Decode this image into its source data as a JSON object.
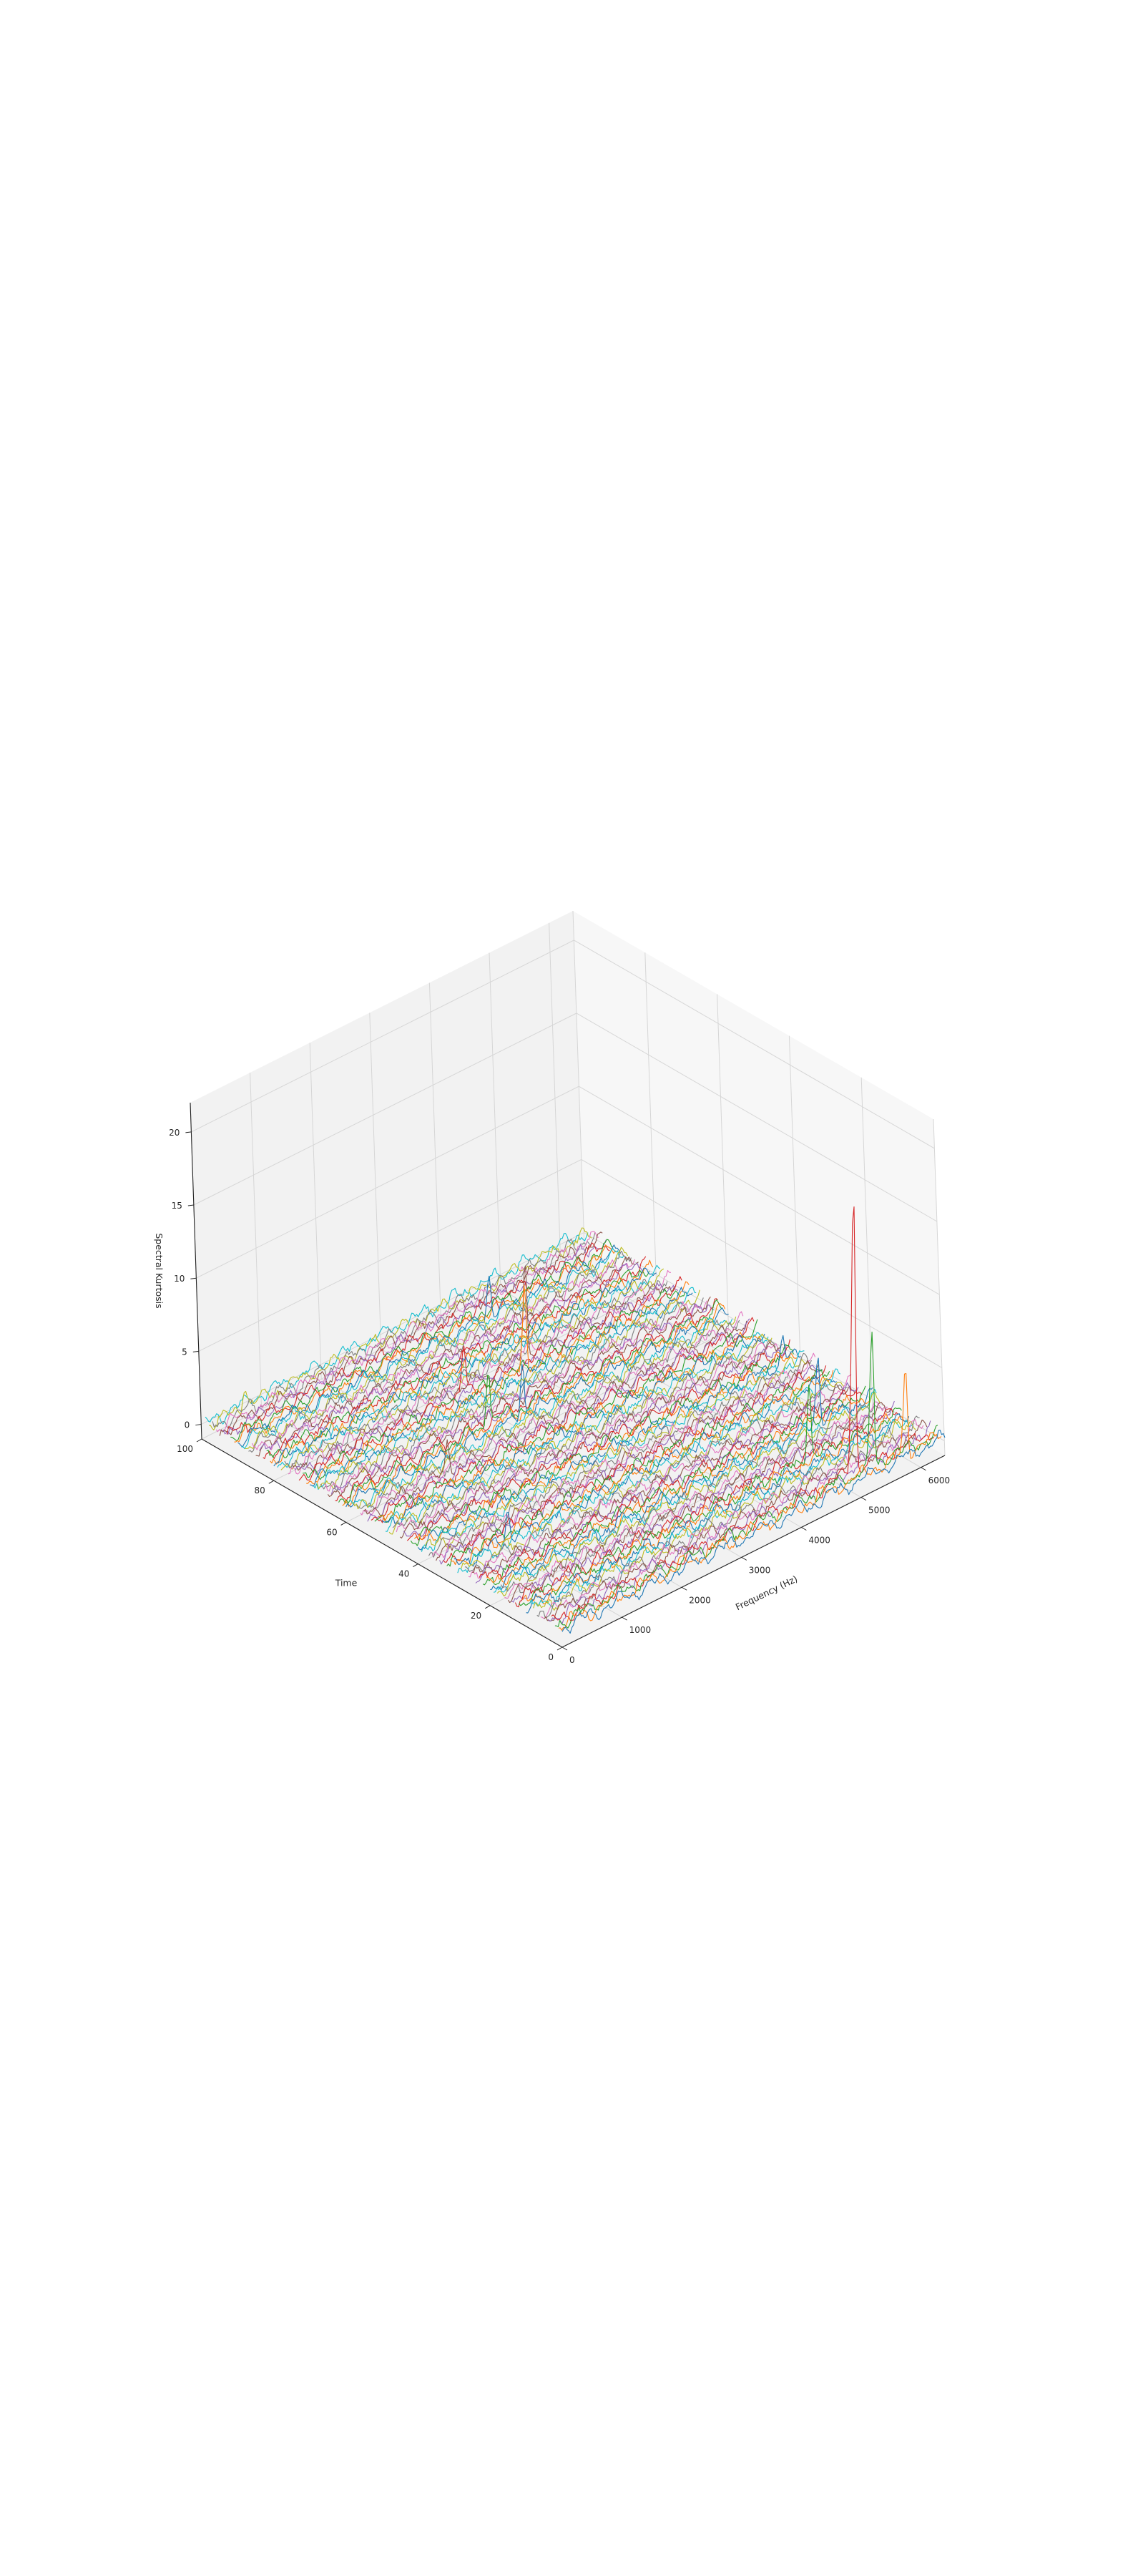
{
  "chart_data": {
    "type": "line",
    "projection": "3d",
    "title": "",
    "xlabel": "Frequency (Hz)",
    "ylabel": "Time",
    "zlabel": "Spectral Kurtosis",
    "xlim": [
      0,
      6400
    ],
    "ylim": [
      0,
      100
    ],
    "zlim": [
      -1,
      22
    ],
    "xticks": [
      0,
      1000,
      2000,
      3000,
      4000,
      5000,
      6000
    ],
    "yticks": [
      0,
      20,
      40,
      60,
      80,
      100
    ],
    "zticks": [
      0,
      5,
      10,
      15,
      20
    ],
    "xtick_labels": [
      "0",
      "1000",
      "2000",
      "3000",
      "4000",
      "5000",
      "6000"
    ],
    "ytick_labels": [
      "0",
      "20",
      "40",
      "60",
      "80",
      "100"
    ],
    "ztick_labels": [
      "0",
      "5",
      "10",
      "15",
      "20"
    ],
    "grid": true,
    "legend": "none",
    "series_count": 100,
    "time_step": 1,
    "frequency_points": 240,
    "color_cycle": [
      "#1f77b4",
      "#ff7f0e",
      "#2ca02c",
      "#d62728",
      "#9467bd",
      "#8c564b",
      "#e377c2",
      "#7f7f7f",
      "#bcbd22",
      "#17becf"
    ],
    "baseline_level": 0.3,
    "notable_peaks": [
      {
        "time": 3,
        "frequency": 5050,
        "value": 20.3
      },
      {
        "time": 2,
        "frequency": 5300,
        "value": 9.5
      },
      {
        "time": 1,
        "frequency": 5800,
        "value": 6.0
      },
      {
        "time": 20,
        "frequency": 5480,
        "value": 5.2
      },
      {
        "time": 12,
        "frequency": 4850,
        "value": 5.6
      },
      {
        "time": 75,
        "frequency": 3900,
        "value": 7.0
      },
      {
        "time": 71,
        "frequency": 3650,
        "value": 6.8
      },
      {
        "time": 62,
        "frequency": 2500,
        "value": 4.4
      },
      {
        "time": 60,
        "frequency": 2950,
        "value": 4.0
      },
      {
        "time": 73,
        "frequency": 2750,
        "value": 3.5
      },
      {
        "time": 90,
        "frequency": 4200,
        "value": 3.0
      },
      {
        "time": 98,
        "frequency": 600,
        "value": 1.8
      },
      {
        "time": 55,
        "frequency": 1400,
        "value": 2.5
      },
      {
        "time": 30,
        "frequency": 900,
        "value": 2.2
      },
      {
        "time": 40,
        "frequency": 6100,
        "value": 2.0
      }
    ]
  }
}
